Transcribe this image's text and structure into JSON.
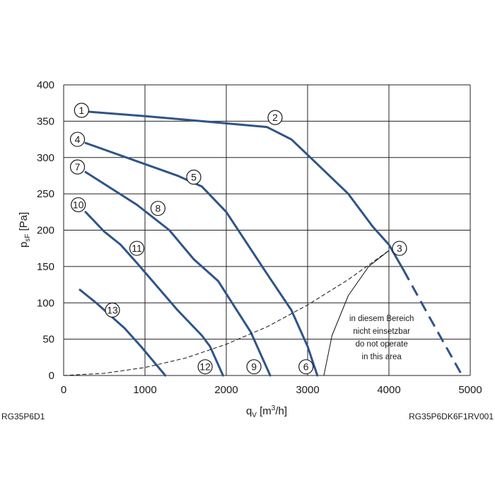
{
  "chart_data": {
    "type": "line",
    "xlabel_main": "q",
    "xlabel_sub": "V",
    "xlabel_unit_pre": " [m",
    "xlabel_unit_sup": "3",
    "xlabel_unit_post": "/h]",
    "ylabel_main": "p",
    "ylabel_sub": "sF",
    "ylabel_unit": " [Pa]",
    "xlim": [
      0,
      5000
    ],
    "ylim": [
      0,
      400
    ],
    "xticks": [
      0,
      1000,
      2000,
      3000,
      4000,
      5000
    ],
    "yticks": [
      0,
      50,
      100,
      150,
      200,
      250,
      300,
      350,
      400
    ],
    "grid": true,
    "colors": {
      "curve": "#2f5488",
      "grid": "#222222",
      "text": "#1a1a1a"
    },
    "series": [
      {
        "id": "upper",
        "style": "solid",
        "x": [
          310,
          1000,
          1800,
          2500,
          2800,
          3100,
          3500,
          3800,
          4000,
          4180
        ],
        "y": [
          363,
          357,
          349,
          342,
          325,
          293,
          250,
          205,
          180,
          145
        ]
      },
      {
        "id": "upper-extension",
        "style": "dashed",
        "x": [
          4180,
          4500,
          4900
        ],
        "y": [
          145,
          80,
          0
        ]
      },
      {
        "id": "curve-4-5-6",
        "style": "solid",
        "x": [
          270,
          1400,
          1700,
          2000,
          2500,
          2800,
          3000,
          3120
        ],
        "y": [
          320,
          275,
          260,
          225,
          140,
          90,
          40,
          0
        ]
      },
      {
        "id": "curve-7-8-9",
        "style": "solid",
        "x": [
          270,
          900,
          1300,
          1600,
          1900,
          2300,
          2540
        ],
        "y": [
          280,
          235,
          200,
          160,
          130,
          60,
          0
        ]
      },
      {
        "id": "curve-10-11-12",
        "style": "solid",
        "x": [
          270,
          500,
          700,
          900,
          1400,
          1700,
          1800,
          1960
        ],
        "y": [
          225,
          198,
          180,
          155,
          90,
          55,
          40,
          0
        ]
      },
      {
        "id": "curve-13",
        "style": "solid",
        "x": [
          200,
          400,
          550,
          750,
          950,
          1250
        ],
        "y": [
          118,
          100,
          85,
          65,
          40,
          0
        ]
      },
      {
        "id": "system-curve",
        "style": "dashed-thin",
        "x": [
          0,
          500,
          1000,
          1500,
          2000,
          2500,
          3000,
          3500,
          4000
        ],
        "y": [
          0,
          3,
          11,
          24,
          43,
          67,
          97,
          132,
          172
        ]
      },
      {
        "id": "limit-curve",
        "style": "thin",
        "x": [
          3200,
          3300,
          3500,
          3750,
          4000
        ],
        "y": [
          0,
          55,
          110,
          150,
          172
        ]
      }
    ],
    "markers": [
      {
        "label": "1",
        "x": 220,
        "y": 365
      },
      {
        "label": "2",
        "x": 2600,
        "y": 355
      },
      {
        "label": "3",
        "x": 4130,
        "y": 175
      },
      {
        "label": "4",
        "x": 170,
        "y": 325
      },
      {
        "label": "5",
        "x": 1600,
        "y": 273
      },
      {
        "label": "6",
        "x": 2980,
        "y": 12
      },
      {
        "label": "7",
        "x": 170,
        "y": 287
      },
      {
        "label": "8",
        "x": 1160,
        "y": 230
      },
      {
        "label": "9",
        "x": 2340,
        "y": 12
      },
      {
        "label": "10",
        "x": 180,
        "y": 235
      },
      {
        "label": "11",
        "x": 900,
        "y": 175
      },
      {
        "label": "12",
        "x": 1740,
        "y": 12
      },
      {
        "label": "13",
        "x": 600,
        "y": 90
      }
    ],
    "annotation": {
      "lines": [
        "in diesem Bereich",
        "nicht einsetzbar",
        "do not operate",
        "in this area"
      ],
      "x": 3910,
      "y_top": 75
    }
  },
  "footer": {
    "left_code": "RG35P6D1",
    "right_code": "RG35P6DK6F1RV001"
  }
}
